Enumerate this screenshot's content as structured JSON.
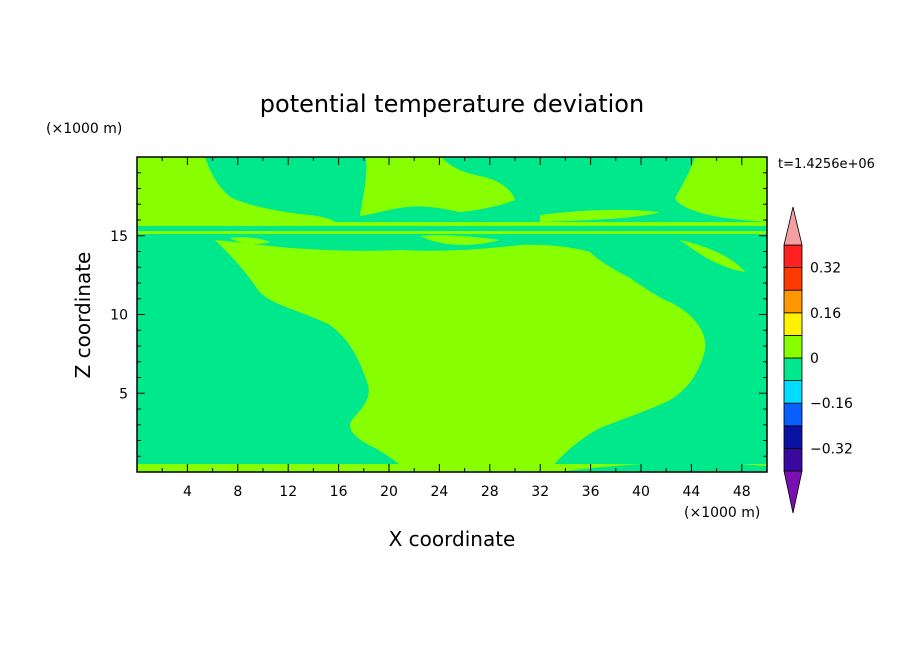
{
  "chart_data": {
    "type": "heatmap",
    "title": "potential temperature deviation",
    "xlabel": "X coordinate",
    "ylabel": "Z coordinate",
    "x_unit": "(×1000 m)",
    "y_unit": "(×1000 m)",
    "time_label": "t=1.4256e+06",
    "xlim": [
      0,
      50
    ],
    "ylim": [
      0,
      20
    ],
    "x_ticks": [
      "4",
      "8",
      "12",
      "16",
      "20",
      "24",
      "28",
      "32",
      "36",
      "40",
      "44",
      "48"
    ],
    "y_ticks": [
      "5",
      "10",
      "15"
    ],
    "colorbar": {
      "labels": [
        "0.32",
        "0.16",
        "0",
        "−0.16",
        "−0.32"
      ],
      "label_values": [
        0.32,
        0.16,
        0,
        -0.16,
        -0.32
      ],
      "levels": [
        -0.4,
        -0.32,
        -0.24,
        -0.16,
        -0.08,
        0,
        0.08,
        0.16,
        0.24,
        0.32,
        0.4
      ],
      "colors": [
        "#3a0aa0",
        "#0a12a4",
        "#0a60ff",
        "#00dcff",
        "#00e88c",
        "#88ff00",
        "#fff200",
        "#ff9800",
        "#ff3a00",
        "#ff2020"
      ],
      "over_color": "#f4a0a0",
      "under_color": "#7a10b0",
      "extend": "both"
    },
    "field_colors": {
      "negative": "#00e88c",
      "positive": "#88ff00"
    }
  }
}
